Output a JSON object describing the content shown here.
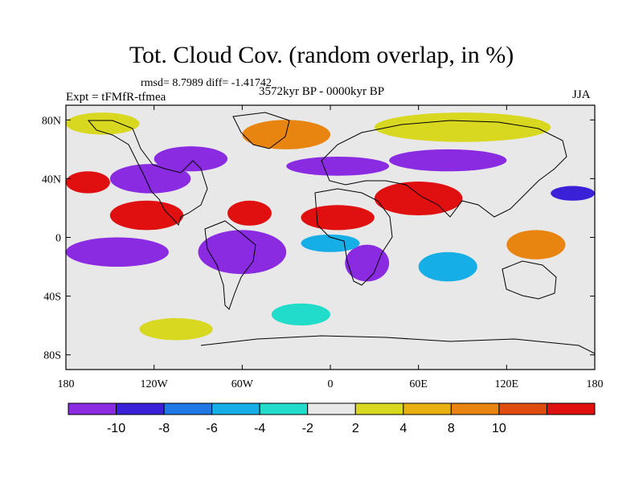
{
  "title": "Tot. Cloud Cov. (random overlap, in %)",
  "stats": "rmsd= 8.7989 diff= -1.41742",
  "experiment": "Expt = tFMfR-tfmea",
  "period": "3572kyr BP - 0000kyr BP",
  "season": "JJA",
  "axes": {
    "x_ticks": [
      {
        "lon": -180,
        "label": "180"
      },
      {
        "lon": -120,
        "label": "120W"
      },
      {
        "lon": -60,
        "label": "60W"
      },
      {
        "lon": 0,
        "label": "0"
      },
      {
        "lon": 60,
        "label": "60E"
      },
      {
        "lon": 120,
        "label": "120E"
      },
      {
        "lon": 180,
        "label": "180"
      }
    ],
    "y_ticks": [
      {
        "lat": 80,
        "label": "80N"
      },
      {
        "lat": 40,
        "label": "40N"
      },
      {
        "lat": 0,
        "label": "0"
      },
      {
        "lat": -40,
        "label": "40S"
      },
      {
        "lat": -80,
        "label": "80S"
      }
    ],
    "lon_range": [
      -180,
      180
    ],
    "lat_range": [
      -90,
      90
    ]
  },
  "colorbar": {
    "colors": [
      "#8a2be2",
      "#3a20d6",
      "#1f78e6",
      "#16aee6",
      "#20dcc8",
      "#e8e8e8",
      "#d8d820",
      "#e8b010",
      "#e88410",
      "#e04c10",
      "#e01010"
    ],
    "labels": [
      "-10",
      "-8",
      "-6",
      "-4",
      "-2",
      "2",
      "4",
      "8",
      "10"
    ]
  },
  "chart_data": {
    "type": "heatmap",
    "title": "Tot. Cloud Cov. (random overlap, in %)",
    "x_range": [
      -180,
      180
    ],
    "y_range": [
      -90,
      90
    ],
    "levels": [
      -10,
      -8,
      -6,
      -4,
      -2,
      2,
      4,
      8,
      10
    ],
    "regions": [
      {
        "name": "",
        "lon": [
          -150,
          -95
        ],
        "lat": [
          30,
          50
        ],
        "level": 0
      },
      {
        "name": "",
        "lon": [
          -120,
          -70
        ],
        "lat": [
          45,
          62
        ],
        "level": 0
      },
      {
        "name": "",
        "lon": [
          -30,
          40
        ],
        "lat": [
          42,
          55
        ],
        "level": 0
      },
      {
        "name": "",
        "lon": [
          40,
          120
        ],
        "lat": [
          45,
          60
        ],
        "level": 0
      },
      {
        "name": "",
        "lon": [
          -180,
          -110
        ],
        "lat": [
          -20,
          0
        ],
        "level": 0
      },
      {
        "name": "",
        "lon": [
          -90,
          -30
        ],
        "lat": [
          -25,
          5
        ],
        "level": 0
      },
      {
        "name": "",
        "lon": [
          10,
          40
        ],
        "lat": [
          -30,
          -5
        ],
        "level": 0
      },
      {
        "name": "",
        "lon": [
          150,
          180
        ],
        "lat": [
          25,
          35
        ],
        "level": 1
      },
      {
        "name": "",
        "lon": [
          -20,
          20
        ],
        "lat": [
          -10,
          2
        ],
        "level": 3
      },
      {
        "name": "",
        "lon": [
          60,
          100
        ],
        "lat": [
          -30,
          -10
        ],
        "level": 3
      },
      {
        "name": "",
        "lon": [
          -40,
          0
        ],
        "lat": [
          -60,
          -45
        ],
        "level": 4
      },
      {
        "name": "",
        "lon": [
          -150,
          -100
        ],
        "lat": [
          5,
          25
        ],
        "level": 10
      },
      {
        "name": "",
        "lon": [
          -70,
          -40
        ],
        "lat": [
          8,
          25
        ],
        "level": 10
      },
      {
        "name": "",
        "lon": [
          -20,
          30
        ],
        "lat": [
          5,
          22
        ],
        "level": 10
      },
      {
        "name": "",
        "lon": [
          30,
          90
        ],
        "lat": [
          15,
          38
        ],
        "level": 10
      },
      {
        "name": "",
        "lon": [
          -180,
          -150
        ],
        "lat": [
          30,
          45
        ],
        "level": 10
      },
      {
        "name": "",
        "lon": [
          -60,
          0
        ],
        "lat": [
          60,
          80
        ],
        "level": 8
      },
      {
        "name": "",
        "lon": [
          120,
          160
        ],
        "lat": [
          -15,
          5
        ],
        "level": 8
      },
      {
        "name": "",
        "lon": [
          -180,
          -130
        ],
        "lat": [
          70,
          85
        ],
        "level": 6
      },
      {
        "name": "",
        "lon": [
          30,
          150
        ],
        "lat": [
          65,
          85
        ],
        "level": 6
      },
      {
        "name": "",
        "lon": [
          -130,
          -80
        ],
        "lat": [
          -70,
          -55
        ],
        "level": 6
      }
    ]
  }
}
